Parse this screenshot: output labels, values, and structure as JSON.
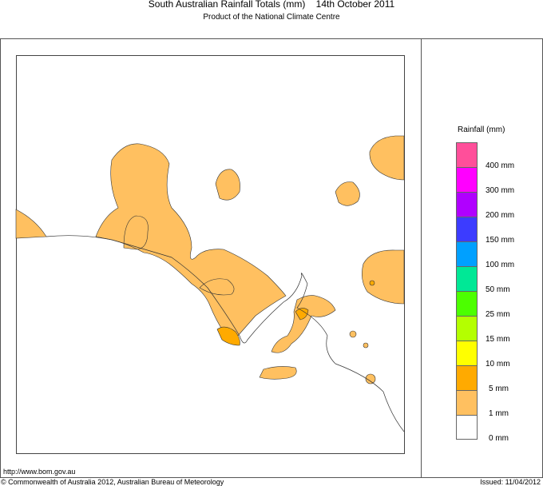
{
  "header": {
    "title": "South Australian Rainfall Totals (mm)    14th October 2011",
    "subtitle": "Product of the National Climate Centre"
  },
  "footer": {
    "url": "http://www.bom.gov.au",
    "copyright": "© Commonwealth of Australia 2012, Australian Bureau of Meteorology",
    "issued": "Issued: 11/04/2012"
  },
  "legend": {
    "title": "Rainfall (mm)",
    "swatches": [
      {
        "color": "#ff4f9a"
      },
      {
        "color": "#ff00ff"
      },
      {
        "color": "#b000ff"
      },
      {
        "color": "#3c3cff"
      },
      {
        "color": "#00a0ff"
      },
      {
        "color": "#00e896"
      },
      {
        "color": "#4cff00"
      },
      {
        "color": "#b4ff00"
      },
      {
        "color": "#ffff00"
      },
      {
        "color": "#ffaa00"
      },
      {
        "color": "#ffc060"
      },
      {
        "color": "#ffffff"
      }
    ],
    "labels": [
      "400 mm",
      "300 mm",
      "200 mm",
      "150 mm",
      "100 mm",
      "50 mm",
      "25 mm",
      "15 mm",
      "10 mm",
      "5 mm",
      "1 mm",
      "0 mm"
    ]
  },
  "colors": {
    "light": "#ffc060",
    "dark": "#ffaa00"
  }
}
